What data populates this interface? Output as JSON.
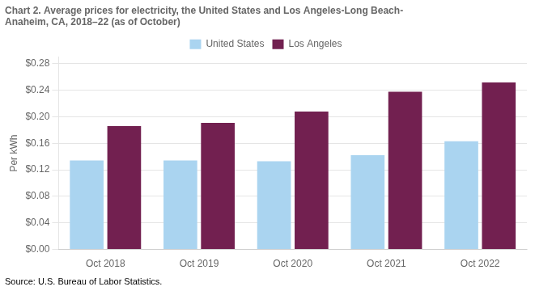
{
  "chart_data": {
    "type": "bar",
    "title": "Chart 2. Average prices for electricity, the United States and Los Angeles-Long Beach-\nAnaheim, CA, 2018–22 (as of October)",
    "ylabel": "Per kWh",
    "source": "Source: U.S. Bureau of Labor Statistics.",
    "categories": [
      "Oct 2018",
      "Oct 2019",
      "Oct 2020",
      "Oct 2021",
      "Oct 2022"
    ],
    "series": [
      {
        "name": "United States",
        "color": "#aad4f0",
        "values": [
          0.134,
          0.134,
          0.133,
          0.142,
          0.163
        ]
      },
      {
        "name": "Los Angeles",
        "color": "#722050",
        "values": [
          0.186,
          0.191,
          0.208,
          0.238,
          0.252
        ]
      }
    ],
    "ylim": [
      0,
      0.29
    ],
    "yticks": [
      {
        "value": 0.0,
        "label": "$0.00"
      },
      {
        "value": 0.04,
        "label": "$0.04"
      },
      {
        "value": 0.08,
        "label": "$0.08"
      },
      {
        "value": 0.12,
        "label": "$0.12"
      },
      {
        "value": 0.16,
        "label": "$0.16"
      },
      {
        "value": 0.2,
        "label": "$0.20"
      },
      {
        "value": 0.24,
        "label": "$0.24"
      },
      {
        "value": 0.28,
        "label": "$0.28"
      }
    ],
    "grid": true,
    "legend": "top"
  }
}
